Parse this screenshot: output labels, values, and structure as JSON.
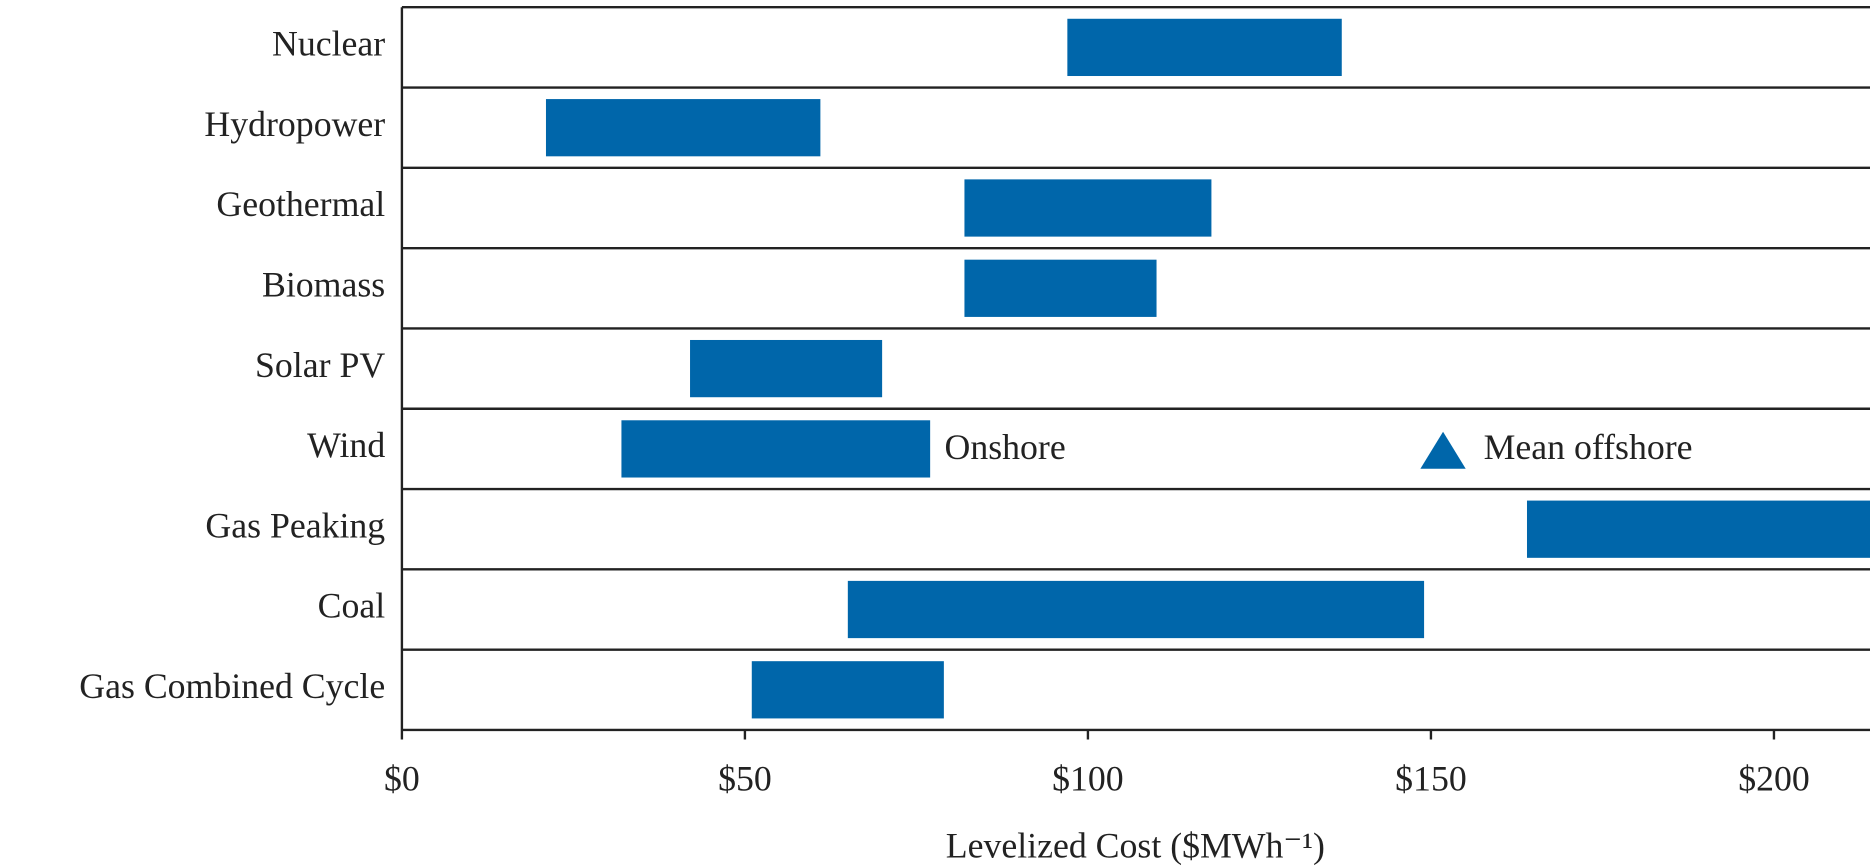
{
  "chart_data": {
    "type": "floating-bar",
    "orientation": "horizontal",
    "categories": [
      "Nuclear",
      "Hydropower",
      "Geothermal",
      "Biomass",
      "Solar PV",
      "Wind",
      "Gas Peaking",
      "Coal",
      "Gas Combined Cycle"
    ],
    "series": [
      {
        "color": "#0066aa",
        "low": [
          97,
          21,
          82,
          82,
          42,
          32,
          164,
          65,
          51
        ],
        "high": [
          137,
          61,
          118,
          110,
          70,
          77,
          218,
          149,
          79
        ]
      }
    ],
    "xlim": [
      0,
      214
    ],
    "xticks": [
      {
        "value": 0,
        "label": "$0"
      },
      {
        "value": 50,
        "label": "$50"
      },
      {
        "value": 100,
        "label": "$100"
      },
      {
        "value": 150,
        "label": "$150"
      },
      {
        "value": 200,
        "label": "$200"
      }
    ],
    "x_label": "Levelized Cost ($MWh⁻¹)",
    "annotations": [
      "Onshore"
    ],
    "legend": {
      "label": "Mean offshore",
      "marker": "triangle",
      "color": "#0066aa"
    }
  }
}
